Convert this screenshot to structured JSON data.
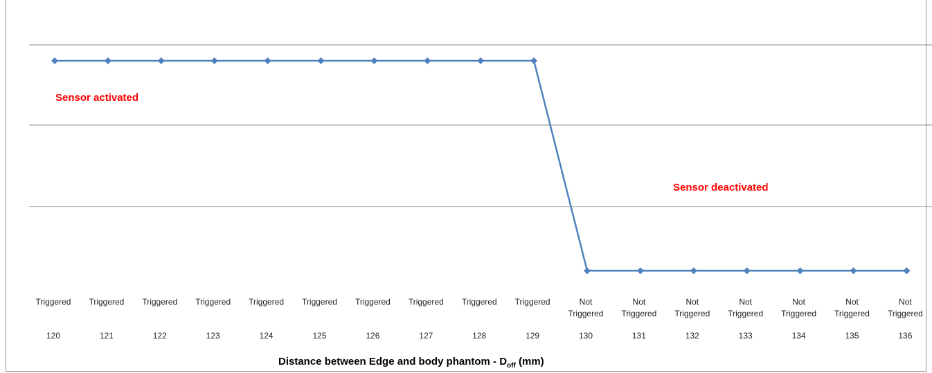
{
  "chart_data": {
    "type": "line",
    "x": [
      120,
      121,
      122,
      123,
      124,
      125,
      126,
      127,
      128,
      129,
      130,
      131,
      132,
      133,
      134,
      135,
      136
    ],
    "categories": [
      "120",
      "121",
      "122",
      "123",
      "124",
      "125",
      "126",
      "127",
      "128",
      "129",
      "130",
      "131",
      "132",
      "133",
      "134",
      "135",
      "136"
    ],
    "status_labels": [
      [
        "Triggered"
      ],
      [
        "Triggered"
      ],
      [
        "Triggered"
      ],
      [
        "Triggered"
      ],
      [
        "Triggered"
      ],
      [
        "Triggered"
      ],
      [
        "Triggered"
      ],
      [
        "Triggered"
      ],
      [
        "Triggered"
      ],
      [
        "Triggered"
      ],
      [
        "Not",
        "Triggered"
      ],
      [
        "Not",
        "Triggered"
      ],
      [
        "Not",
        "Triggered"
      ],
      [
        "Not",
        "Triggered"
      ],
      [
        "Not",
        "Triggered"
      ],
      [
        "Not",
        "Triggered"
      ],
      [
        "Not",
        "Triggered"
      ]
    ],
    "series": [
      {
        "values": [
          1,
          1,
          1,
          1,
          1,
          1,
          1,
          1,
          1,
          1,
          0,
          0,
          0,
          0,
          0,
          0,
          0
        ],
        "color": "#4f81bd"
      }
    ],
    "ylim": [
      0,
      1
    ],
    "grid": true,
    "title": "",
    "ylabel": "",
    "xlabel": {
      "main": "Distance between Edge  and body phantom  - D",
      "sub": "off",
      "unit": " (mm)"
    },
    "annotations": [
      {
        "text": "Sensor activated",
        "color": "#ff0000"
      },
      {
        "text": "Sensor deactivated",
        "color": "#ff0000"
      }
    ]
  }
}
